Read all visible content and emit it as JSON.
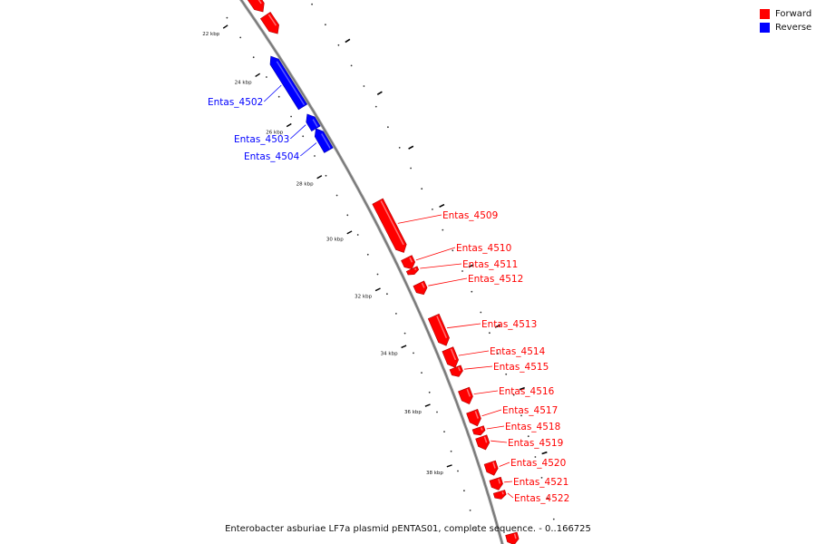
{
  "legend": {
    "forward": {
      "label": "Forward",
      "color": "#ff0000"
    },
    "reverse": {
      "label": "Reverse",
      "color": "#0000ff"
    }
  },
  "caption": "Enterobacter asburiae LF7a plasmid pENTAS01, complete sequence. - 0..166725",
  "ticks": [
    "22 kbp",
    "24 kbp",
    "26 kbp",
    "28 kbp",
    "30 kbp",
    "32 kbp",
    "34 kbp",
    "36 kbp",
    "38 kbp"
  ],
  "genes": [
    {
      "name": "",
      "strand": "forward"
    },
    {
      "name": "",
      "strand": "forward"
    },
    {
      "name": "Entas_4502",
      "strand": "reverse"
    },
    {
      "name": "Entas_4503",
      "strand": "reverse"
    },
    {
      "name": "Entas_4504",
      "strand": "reverse"
    },
    {
      "name": "Entas_4509",
      "strand": "forward"
    },
    {
      "name": "Entas_4510",
      "strand": "forward"
    },
    {
      "name": "Entas_4511",
      "strand": "forward"
    },
    {
      "name": "Entas_4512",
      "strand": "forward"
    },
    {
      "name": "Entas_4513",
      "strand": "forward"
    },
    {
      "name": "Entas_4514",
      "strand": "forward"
    },
    {
      "name": "Entas_4515",
      "strand": "forward"
    },
    {
      "name": "Entas_4516",
      "strand": "forward"
    },
    {
      "name": "Entas_4517",
      "strand": "forward"
    },
    {
      "name": "Entas_4518",
      "strand": "forward"
    },
    {
      "name": "Entas_4519",
      "strand": "forward"
    },
    {
      "name": "Entas_4520",
      "strand": "forward"
    },
    {
      "name": "Entas_4521",
      "strand": "forward"
    },
    {
      "name": "Entas_4522",
      "strand": "forward"
    },
    {
      "name": "",
      "strand": "forward"
    }
  ]
}
